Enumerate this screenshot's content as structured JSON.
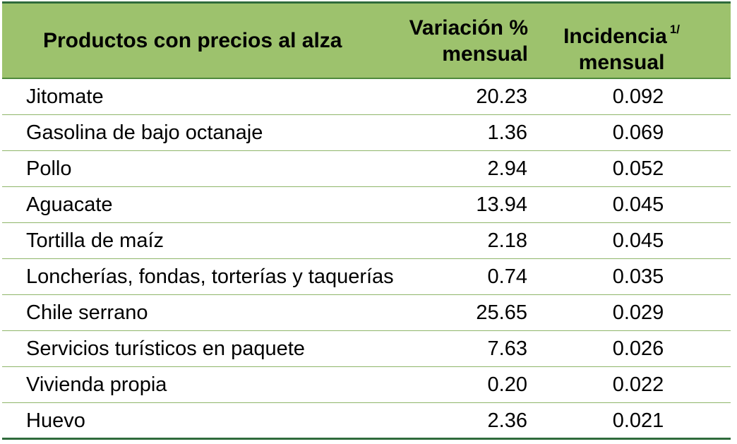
{
  "table": {
    "headers": {
      "product": "Productos con precios al alza",
      "variation_line1": "Variación %",
      "variation_line2": "mensual",
      "incidence_line1": "Incidencia",
      "incidence_note": "1/",
      "incidence_line2": "mensual"
    },
    "rows": [
      {
        "product": "Jitomate",
        "variation": "20.23",
        "incidence": "0.092"
      },
      {
        "product": "Gasolina de bajo octanaje",
        "variation": "1.36",
        "incidence": "0.069"
      },
      {
        "product": "Pollo",
        "variation": "2.94",
        "incidence": "0.052"
      },
      {
        "product": "Aguacate",
        "variation": "13.94",
        "incidence": "0.045"
      },
      {
        "product": "Tortilla de maíz",
        "variation": "2.18",
        "incidence": "0.045"
      },
      {
        "product": "Loncherías, fondas, torterías y taquerías",
        "variation": "0.74",
        "incidence": "0.035"
      },
      {
        "product": "Chile serrano",
        "variation": "25.65",
        "incidence": "0.029"
      },
      {
        "product": "Servicios turísticos en paquete",
        "variation": "7.63",
        "incidence": "0.026"
      },
      {
        "product": "Vivienda propia",
        "variation": "0.20",
        "incidence": "0.022"
      },
      {
        "product": "Huevo",
        "variation": "2.36",
        "incidence": "0.021"
      }
    ]
  },
  "colors": {
    "header_bg": "#9dc26d",
    "rule": "#2f6b3c",
    "row_line": "#8fb66a"
  }
}
